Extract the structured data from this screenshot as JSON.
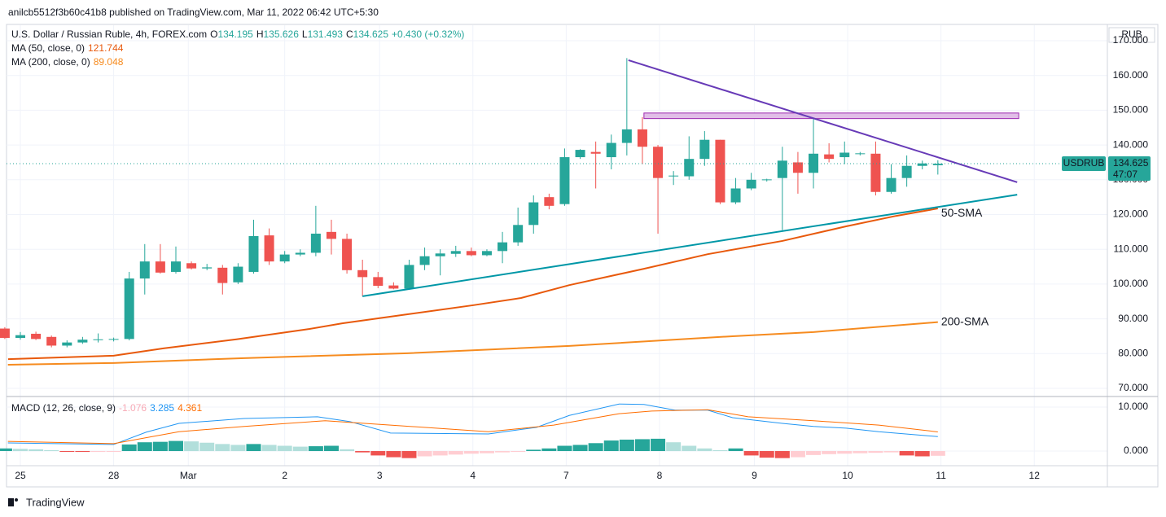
{
  "chart_data": {
    "type": "candlestick",
    "published": "anilcb5512f3b60c41b8 published on TradingView.com, Mar 11, 2022 06:42 UTC+5:30",
    "title": "U.S. Dollar / Russian Ruble, 4h, FOREX.com",
    "ohlc_prefixes": [
      "O",
      "H",
      "L",
      "C"
    ],
    "change": "+0.430 (+0.32%)",
    "currency": "RUB",
    "countdown": "47:07",
    "logo": "TradingView",
    "grid": true,
    "xlim": [
      -0.89,
      69.9
    ],
    "xticks": [
      {
        "value": 0,
        "label": "25"
      },
      {
        "value": 6,
        "label": "28"
      },
      {
        "value": 10.8,
        "label": "Mar"
      },
      {
        "value": 17.0,
        "label": "2"
      },
      {
        "value": 23.1,
        "label": "3"
      },
      {
        "value": 29.1,
        "label": "4"
      },
      {
        "value": 35.1,
        "label": "7"
      },
      {
        "value": 41.1,
        "label": "8"
      },
      {
        "value": 47.2,
        "label": "9"
      },
      {
        "value": 53.2,
        "label": "10"
      },
      {
        "value": 59.2,
        "label": "11"
      },
      {
        "value": 65.2,
        "label": "12"
      }
    ],
    "ylim": [
      67.89,
      174.45
    ],
    "yticks": [
      {
        "value": 70,
        "label": "70.000"
      },
      {
        "value": 80,
        "label": "80.000"
      },
      {
        "value": 90,
        "label": "90.000"
      },
      {
        "value": 100,
        "label": "100.000"
      },
      {
        "value": 110,
        "label": "110.000"
      },
      {
        "value": 120,
        "label": "120.000"
      },
      {
        "value": 130,
        "label": "130.000"
      },
      {
        "value": 140,
        "label": "140.000"
      },
      {
        "value": 150,
        "label": "150.000"
      },
      {
        "value": 160,
        "label": "160.000"
      },
      {
        "value": 170,
        "label": "170.000"
      }
    ],
    "series": [
      {
        "name": "USDRUB",
        "up_color": "#26a69a",
        "down_color": "#ef5350",
        "x": [
          -1,
          0,
          1,
          2,
          3,
          4,
          5,
          6,
          7,
          8,
          9,
          10,
          11,
          12,
          13,
          14,
          15,
          16,
          17,
          18,
          19,
          20,
          21,
          22,
          23,
          24,
          25,
          26,
          27,
          28,
          29,
          30,
          31,
          32,
          33,
          34,
          35,
          36,
          37,
          38,
          39,
          40,
          41,
          42,
          43,
          44,
          45,
          46,
          47,
          48,
          49,
          50,
          51,
          52,
          53,
          54,
          55,
          56,
          57,
          58,
          59
        ],
        "open": [
          87.2,
          84.5,
          85.7,
          84.8,
          82.3,
          83.2,
          84,
          84,
          84.2,
          101.6,
          106.5,
          103.5,
          106,
          104.5,
          104.7,
          100.5,
          103.5,
          114,
          106.5,
          108.5,
          109,
          115,
          113,
          104,
          102,
          99.6,
          98.7,
          105.5,
          108,
          108.7,
          109.5,
          108.3,
          109.5,
          112,
          117,
          125,
          123,
          136.5,
          138,
          136.5,
          140.6,
          144.5,
          139.5,
          131,
          131,
          136,
          141.5,
          123.5,
          127.5,
          130,
          130.5,
          135,
          132,
          137.3,
          136.5,
          137.5,
          137.5,
          126.5,
          130.5,
          134,
          134.195
        ],
        "high": [
          87.6,
          86.2,
          86.3,
          85.2,
          83.8,
          84.8,
          85.8,
          84.6,
          103.5,
          111.5,
          111.5,
          110.8,
          106.5,
          105.8,
          105.5,
          106,
          118.5,
          116,
          109.5,
          110,
          122.5,
          118.5,
          114.5,
          107,
          103.5,
          100.5,
          107,
          110.5,
          110,
          111,
          110.5,
          110,
          115,
          122,
          125.5,
          126,
          139,
          138.8,
          141,
          143,
          165,
          148,
          140,
          132.5,
          142.5,
          144,
          141.5,
          130.5,
          132,
          130.3,
          139.5,
          138,
          147.5,
          140.5,
          141,
          138,
          141,
          134.5,
          137,
          135.5,
          135.626
        ],
        "low": [
          84.2,
          84,
          83.9,
          81.8,
          81.8,
          82.8,
          83.2,
          83.5,
          83.8,
          97,
          103,
          103,
          104.2,
          104,
          97,
          100,
          103,
          105.5,
          106,
          108,
          108,
          108.5,
          103,
          96.5,
          98.8,
          98.5,
          98.5,
          104,
          102.5,
          107.8,
          108,
          108,
          106,
          111,
          114.5,
          121.5,
          122.5,
          136,
          127.5,
          133,
          137,
          134.5,
          114.5,
          128.5,
          130,
          134,
          123,
          123,
          127,
          129.5,
          115.5,
          126,
          127.5,
          135,
          134.5,
          137,
          125.5,
          126,
          128,
          133,
          131.493
        ],
        "close": [
          84.5,
          85.3,
          84.2,
          82.3,
          83.2,
          84.0,
          84.1,
          84.2,
          101.6,
          106.5,
          103.3,
          106.5,
          104.5,
          104.8,
          100.3,
          105,
          113.8,
          106.5,
          108.5,
          109,
          114.5,
          113,
          104,
          102,
          99.5,
          98.7,
          105.5,
          108,
          108.8,
          109.5,
          108.3,
          109.5,
          112,
          117,
          123.5,
          122.5,
          136.5,
          138.6,
          137.5,
          140.6,
          144.5,
          139.5,
          130.5,
          131.2,
          136,
          141.5,
          123.5,
          127.5,
          130,
          130.1,
          135.5,
          132,
          137.5,
          136,
          137.8,
          137.6,
          126.5,
          130.5,
          134,
          134.7,
          134.625
        ]
      }
    ],
    "indicators": {
      "ma": [
        {
          "name": "MA (50, close, 0)",
          "color": "#e8590c",
          "x": [
            -0.79,
            6.0,
            9.2,
            13.9,
            18.6,
            20.7,
            24.9,
            29.1,
            32.2,
            35.3,
            40.1,
            44.2,
            49.0,
            53.1,
            56.3,
            59
          ],
          "values": [
            78.4,
            79.4,
            81.5,
            84.1,
            87.1,
            88.7,
            91.3,
            93.9,
            96.0,
            99.7,
            104.4,
            108.6,
            112.4,
            116.6,
            119.6,
            121.744
          ]
        },
        {
          "name": "MA (200, close, 0)",
          "color": "#f68b1f",
          "x": [
            -0.8,
            6,
            14.4,
            24.9,
            35.3,
            45.8,
            51.0,
            59
          ],
          "values": [
            76.8,
            77.3,
            78.7,
            80.1,
            82.2,
            85.0,
            86.2,
            89.048
          ]
        }
      ]
    },
    "annotations": [
      {
        "text": "50-SMA",
        "color": "#131722"
      },
      {
        "text": "200-SMA",
        "color": "#f68b1f"
      }
    ],
    "drawings": {
      "resistance_line": {
        "color": "#673ab7",
        "x": [
          39.1,
          64.1
        ],
        "values": [
          164.4,
          129.3
        ]
      },
      "support_line": {
        "color": "#0097a7",
        "x": [
          22.0,
          64.1
        ],
        "values": [
          96.5,
          125.7
        ]
      },
      "zone": {
        "color": "#9c27b0",
        "fill": "#e1bee7",
        "x": [
          40.1,
          64.2
        ],
        "values": [
          147.6,
          149.2
        ]
      }
    },
    "macd": {
      "name": "MACD (12, 26, close, 9)",
      "ylim": [
        -3.33,
        12.22
      ],
      "yticks": [
        {
          "value": 0,
          "label": "0.000"
        },
        {
          "value": 10,
          "label": "10.000"
        }
      ],
      "histogram": {
        "colors": {
          "grow_pos": "#26a69a",
          "fall_pos": "#b2dfdb",
          "grow_neg": "#ffcdd2",
          "fall_neg": "#ef5350"
        },
        "legend_color": "#f7a9b5",
        "values": [
          0.6,
          0.5,
          0.4,
          0.2,
          -0.1,
          -0.2,
          -0.2,
          -0.1,
          1.5,
          2.0,
          2.1,
          2.3,
          2.2,
          1.9,
          1.6,
          1.4,
          1.6,
          1.4,
          1.2,
          1.0,
          1.1,
          1.2,
          0.4,
          -0.3,
          -1.0,
          -1.4,
          -1.6,
          -1.2,
          -1.0,
          -0.8,
          -0.6,
          -0.5,
          -0.3,
          -0.2,
          0.3,
          0.6,
          1.2,
          1.4,
          1.8,
          2.4,
          2.6,
          2.7,
          2.8,
          2.0,
          1.2,
          0.6,
          0.2,
          0.6,
          -1.0,
          -1.5,
          -1.6,
          -1.4,
          -0.9,
          -0.7,
          -0.6,
          -0.5,
          -0.4,
          -0.3,
          -1.0,
          -1.2,
          -1.076
        ]
      },
      "macd": {
        "color": "#2196f3",
        "x": [
          -0.8,
          6,
          8.1,
          10.2,
          14.4,
          19.1,
          21.2,
          23.8,
          30.1,
          33.2,
          35.3,
          38.5,
          40.1,
          42.1,
          44.2,
          45.8,
          49,
          51,
          53.1,
          55.2,
          59
        ],
        "values": [
          1.85,
          1.5,
          4.3,
          6.3,
          7.4,
          7.8,
          6.7,
          4.1,
          3.9,
          5.4,
          8.1,
          10.7,
          10.6,
          9.3,
          9.3,
          7.6,
          6.3,
          5.6,
          5.2,
          4.4,
          3.285
        ]
      },
      "signal": {
        "color": "#ff6d00",
        "x": [
          -0.8,
          6,
          10.2,
          14.4,
          19.6,
          23.8,
          30.1,
          34.3,
          38.5,
          40.6,
          44.2,
          46.8,
          51,
          55.2,
          59
        ],
        "values": [
          2.2,
          1.7,
          4.4,
          5.6,
          6.9,
          5.9,
          4.4,
          5.9,
          8.5,
          9.1,
          9.4,
          7.8,
          6.9,
          5.9,
          4.361
        ]
      }
    }
  }
}
